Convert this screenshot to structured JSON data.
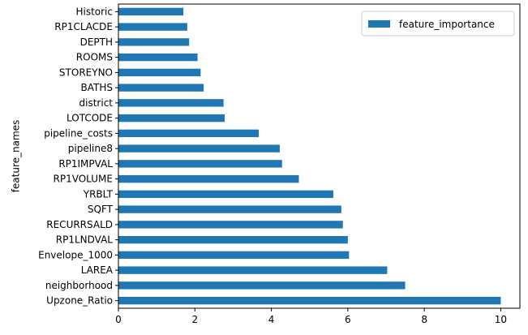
{
  "chart_data": {
    "type": "bar",
    "orientation": "horizontal",
    "ylabel": "feature_names",
    "xlabel": "",
    "xlim": [
      0,
      10.5
    ],
    "x_ticks": [
      0,
      2,
      4,
      6,
      8,
      10
    ],
    "grid": false,
    "legend_placement": "top-right",
    "bar_color": "#1f77b4",
    "categories": [
      "Upzone_Ratio",
      "neighborhood",
      "LAREA",
      "Envelope_1000",
      "RP1LNDVAL",
      "RECURRSALD",
      "SQFT",
      "YRBLT",
      "RP1VOLUME",
      "RP1IMPVAL",
      "pipeline8",
      "pipeline_costs",
      "LOTCODE",
      "district",
      "BATHS",
      "STOREYNO",
      "ROOMS",
      "DEPTH",
      "RP1CLACDE",
      "Historic"
    ],
    "series": [
      {
        "name": "feature_importance",
        "values": [
          10.0,
          7.5,
          7.03,
          6.03,
          6.0,
          5.87,
          5.83,
          5.62,
          4.72,
          4.28,
          4.22,
          3.67,
          2.78,
          2.75,
          2.23,
          2.15,
          2.07,
          1.85,
          1.8,
          1.7
        ]
      }
    ]
  }
}
